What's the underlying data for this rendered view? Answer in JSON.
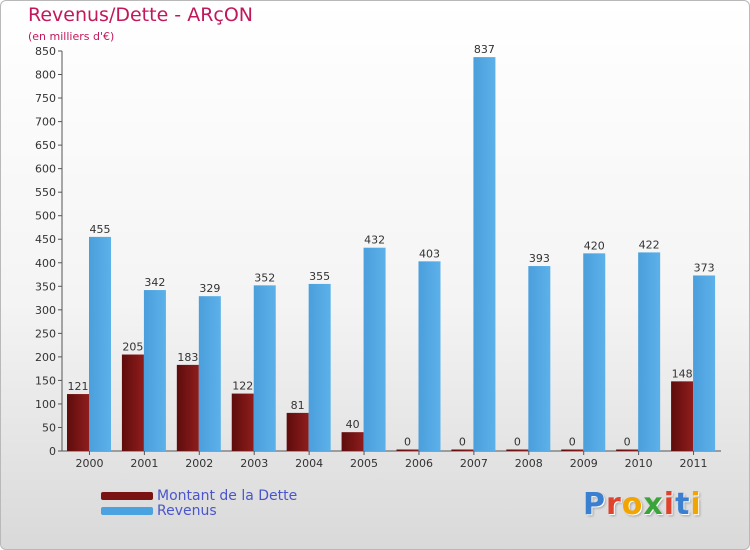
{
  "title": "Revenus/Dette - ARçON",
  "subtitle": "(en milliers d'€)",
  "logo": "Proxiti",
  "colors": {
    "dette": "#7a1414",
    "revenus": "#4aa3e0",
    "title": "#c2185b",
    "legend_text": "#4a55cc"
  },
  "chart_data": {
    "type": "bar",
    "title": "Revenus/Dette - ARçON",
    "ylabel": "(en milliers d'€)",
    "xlabel": "",
    "categories": [
      "2000",
      "2001",
      "2002",
      "2003",
      "2004",
      "2005",
      "2006",
      "2007",
      "2008",
      "2009",
      "2010",
      "2011"
    ],
    "series": [
      {
        "name": "Montant de la Dette",
        "values": [
          121,
          205,
          183,
          122,
          81,
          40,
          0,
          0,
          0,
          0,
          0,
          148
        ]
      },
      {
        "name": "Revenus",
        "values": [
          455,
          342,
          329,
          352,
          355,
          432,
          403,
          837,
          393,
          420,
          422,
          373
        ]
      }
    ],
    "ylim": [
      0,
      850
    ],
    "yticks": [
      0,
      50,
      100,
      150,
      200,
      250,
      300,
      350,
      400,
      450,
      500,
      550,
      600,
      650,
      700,
      750,
      800,
      850
    ],
    "grid": false,
    "legend": "bottom-left"
  }
}
